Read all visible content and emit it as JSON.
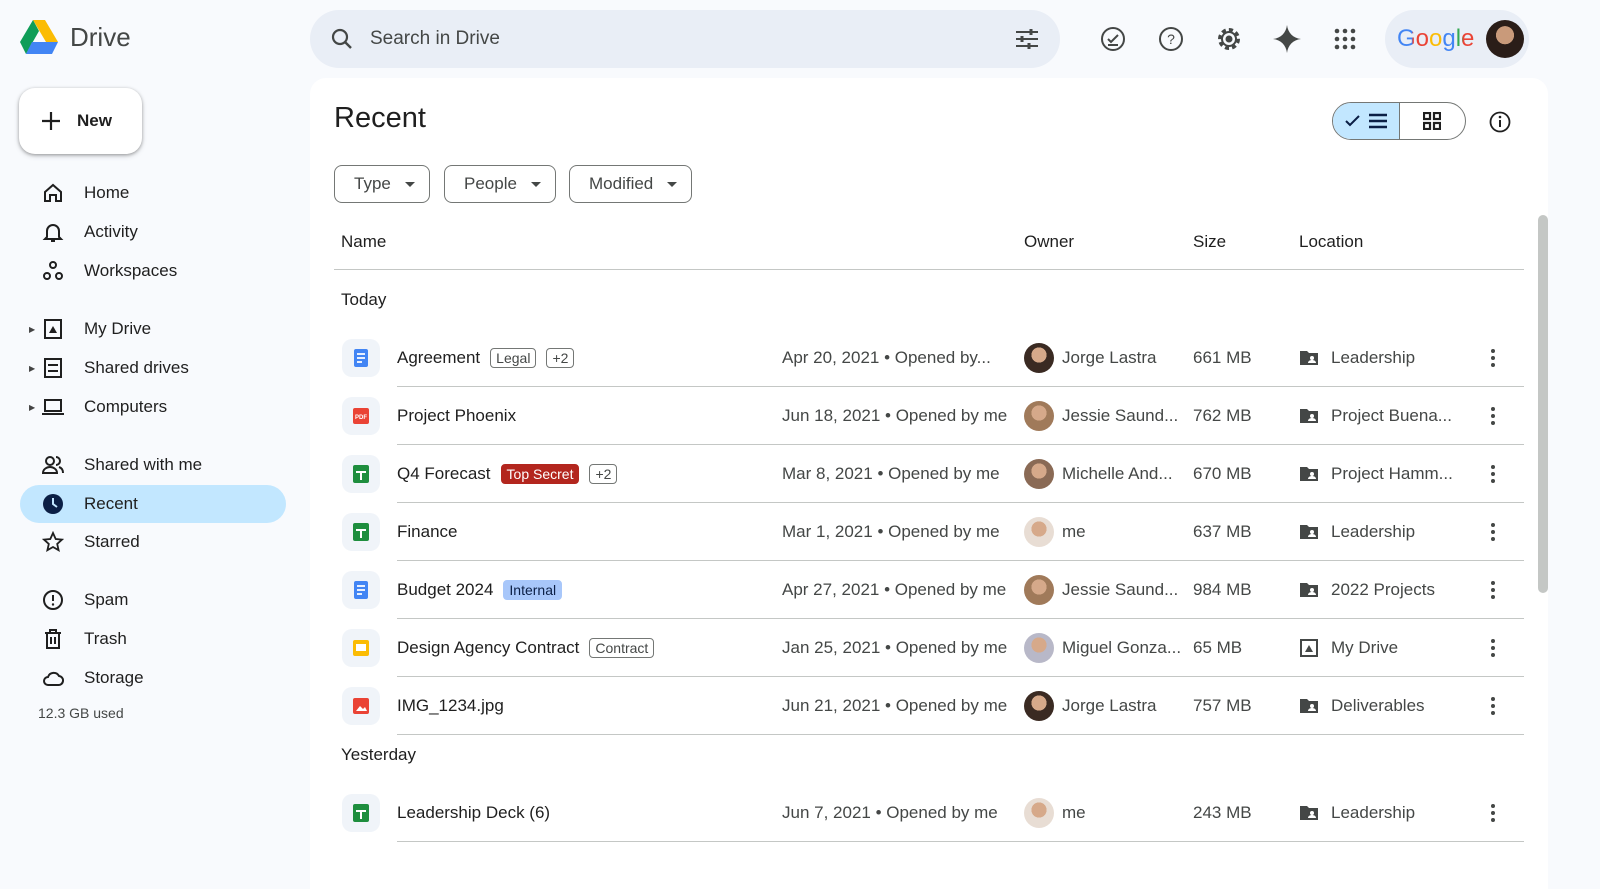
{
  "app": {
    "name": "Drive"
  },
  "search": {
    "placeholder": "Search in Drive"
  },
  "account": {
    "brand": "Google"
  },
  "new_button": "New",
  "sidebar": {
    "items": [
      {
        "label": "Home",
        "icon": "home-icon"
      },
      {
        "label": "Activity",
        "icon": "bell-icon"
      },
      {
        "label": "Workspaces",
        "icon": "workspaces-icon"
      },
      {
        "label": "My Drive",
        "icon": "my-drive-icon"
      },
      {
        "label": "Shared drives",
        "icon": "shared-drives-icon"
      },
      {
        "label": "Computers",
        "icon": "computer-icon"
      },
      {
        "label": "Shared with me",
        "icon": "people-icon"
      },
      {
        "label": "Recent",
        "icon": "clock-icon",
        "active": true
      },
      {
        "label": "Starred",
        "icon": "star-icon"
      },
      {
        "label": "Spam",
        "icon": "spam-icon"
      },
      {
        "label": "Trash",
        "icon": "trash-icon"
      },
      {
        "label": "Storage",
        "icon": "cloud-icon"
      }
    ],
    "storage_used": "12.3 GB used"
  },
  "main": {
    "title": "Recent",
    "view": "list",
    "filters": [
      "Type",
      "People",
      "Modified"
    ],
    "columns": {
      "name": "Name",
      "owner": "Owner",
      "size": "Size",
      "location": "Location"
    },
    "groups": [
      {
        "label": "Today",
        "files": [
          {
            "name": "Agreement",
            "type": "doc",
            "tags": [
              {
                "text": "Legal",
                "style": "outline"
              },
              {
                "text": "+2",
                "style": "outline"
              }
            ],
            "date": "Apr 20, 2021 • Opened by...",
            "owner": "Jorge Lastra",
            "size": "661 MB",
            "location": "Leadership",
            "location_type": "shared-folder"
          },
          {
            "name": "Project Phoenix",
            "type": "pdf",
            "tags": [],
            "date": "Jun 18, 2021 • Opened by me",
            "owner": "Jessie Saund...",
            "size": "762 MB",
            "location": "Project Buena...",
            "location_type": "shared-folder"
          },
          {
            "name": "Q4 Forecast",
            "type": "sheet",
            "tags": [
              {
                "text": "Top Secret",
                "style": "red"
              },
              {
                "text": "+2",
                "style": "outline"
              }
            ],
            "date": "Mar 8, 2021 • Opened by me",
            "owner": "Michelle And...",
            "size": "670 MB",
            "location": "Project Hamm...",
            "location_type": "shared-folder"
          },
          {
            "name": "Finance",
            "type": "sheet",
            "tags": [],
            "date": "Mar 1, 2021 • Opened by me",
            "owner": "me",
            "size": "637 MB",
            "location": "Leadership",
            "location_type": "shared-folder"
          },
          {
            "name": "Budget 2024",
            "type": "doc",
            "tags": [
              {
                "text": "Internal",
                "style": "blue"
              }
            ],
            "date": "Apr 27, 2021 • Opened by me",
            "owner": "Jessie Saund...",
            "size": "984 MB",
            "location": "2022 Projects",
            "location_type": "shared-folder"
          },
          {
            "name": "Design Agency Contract",
            "type": "slides",
            "tags": [
              {
                "text": "Contract",
                "style": "outline"
              }
            ],
            "date": "Jan 25, 2021 • Opened by me",
            "owner": "Miguel Gonza...",
            "size": "65 MB",
            "location": "My Drive",
            "location_type": "my-drive"
          },
          {
            "name": "IMG_1234.jpg",
            "type": "image",
            "tags": [],
            "date": "Jun 21, 2021 • Opened by me",
            "owner": "Jorge Lastra",
            "size": "757 MB",
            "location": "Deliverables",
            "location_type": "shared-folder"
          }
        ]
      },
      {
        "label": "Yesterday",
        "files": [
          {
            "name": "Leadership Deck (6)",
            "type": "sheet",
            "tags": [],
            "date": "Jun 7, 2021 • Opened by me",
            "owner": "me",
            "size": "243 MB",
            "location": "Leadership",
            "location_type": "shared-folder"
          }
        ]
      }
    ]
  }
}
